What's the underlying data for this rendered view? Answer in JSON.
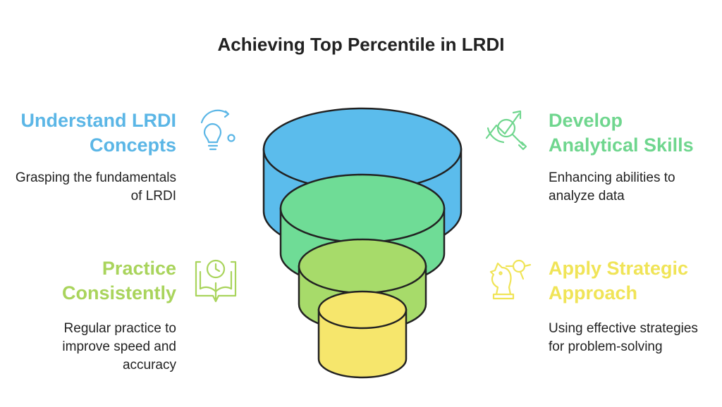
{
  "title": "Achieving Top Percentile in LRDI",
  "colors": {
    "blue": "#5bbcec",
    "green_light": "#6fdc96",
    "green": "#a7db6a",
    "yellow_green": "#c8dd5a",
    "yellow": "#f6e66c",
    "heading_blue": "#5bb6e6",
    "heading_green": "#6fd68e",
    "heading_lime": "#a9d45c",
    "heading_yellow": "#f0e457"
  },
  "items": [
    {
      "heading_lines": [
        "Understand LRDI",
        "Concepts"
      ],
      "description": "Grasping the fundamentals of LRDI",
      "icon": "lightbulb-icon"
    },
    {
      "heading_lines": [
        "Develop",
        "Analytical Skills"
      ],
      "description": "Enhancing abilities to analyze data",
      "icon": "chart-magnifier-icon"
    },
    {
      "heading_lines": [
        "Practice",
        "Consistently"
      ],
      "description": "Regular practice to improve speed and accuracy",
      "icon": "clock-book-icon"
    },
    {
      "heading_lines": [
        "Apply Strategic",
        "Approach"
      ],
      "description": "Using effective strategies for problem-solving",
      "icon": "chess-knight-icon"
    }
  ]
}
